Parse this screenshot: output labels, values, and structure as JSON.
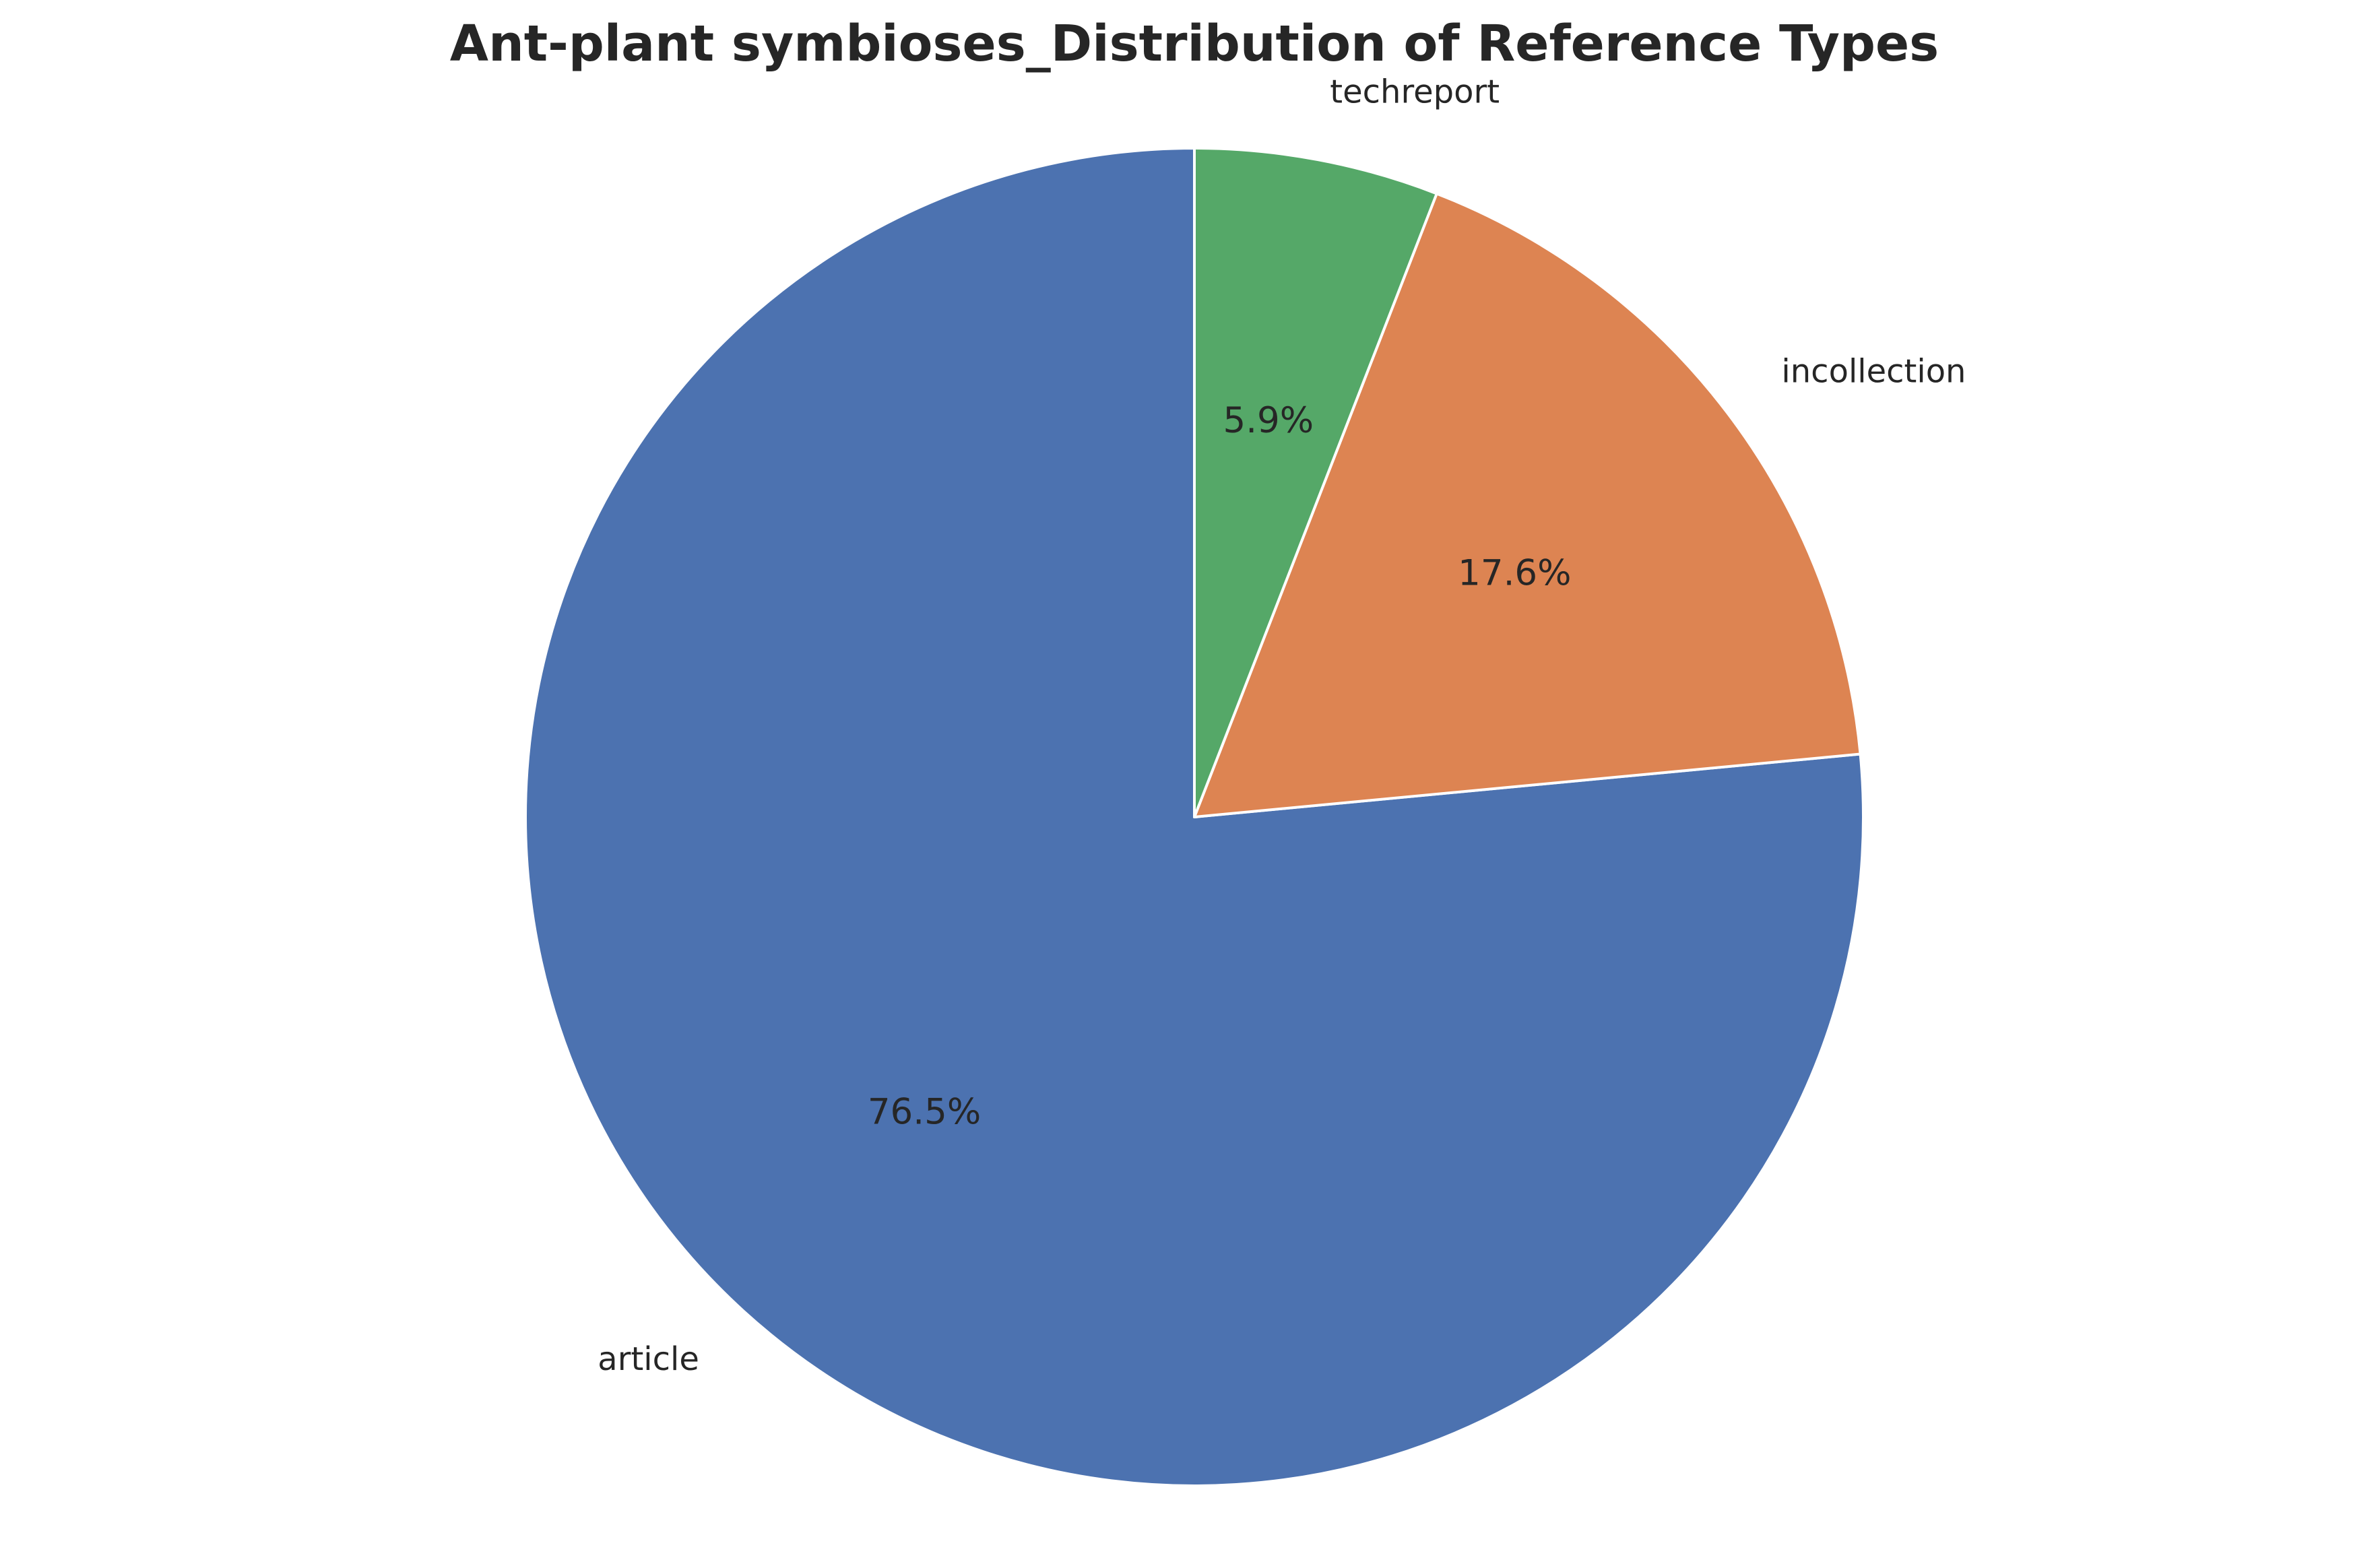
{
  "chart_data": {
    "type": "pie",
    "title": "Ant-plant symbioses_Distribution of Reference Types",
    "categories": [
      "article",
      "incollection",
      "techreport"
    ],
    "values": [
      76.5,
      17.6,
      5.9
    ],
    "value_labels": [
      "76.5%",
      "17.6%",
      "5.9%"
    ],
    "colors": [
      "#4c72b0",
      "#dd8452",
      "#55a868"
    ],
    "start_angle_deg": 90,
    "direction": "counterclockwise",
    "legend": "none",
    "edge_color": "#ffffff"
  }
}
